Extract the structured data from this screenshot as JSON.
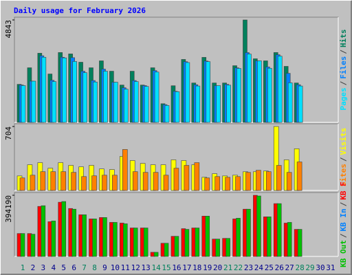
{
  "chart_data": [
    {
      "type": "bar",
      "title": "Daily usage for February 2026",
      "separator": "/",
      "ylim": [
        0,
        4843
      ],
      "yticks": [
        4843
      ],
      "series": [
        {
          "name": "Hits",
          "color": "#00805c",
          "values": [
            1800,
            2583,
            3270,
            2289,
            3303,
            3237,
            2845,
            2583,
            2910,
            2420,
            1766,
            2420,
            1766,
            2583,
            883,
            1733,
            2976,
            1864,
            3074,
            1864,
            1864,
            2681,
            4843,
            3008,
            2910,
            3303,
            2649,
            1864,
            null,
            null,
            null
          ]
        },
        {
          "name": "Files",
          "color": "#0080ff",
          "values": [
            1770,
            1950,
            3150,
            1990,
            3080,
            3060,
            2420,
            1980,
            2520,
            1900,
            1640,
            1980,
            1740,
            2450,
            840,
            1470,
            2870,
            1780,
            2900,
            1740,
            1800,
            2580,
            3300,
            2910,
            2620,
            3200,
            2320,
            1780,
            null,
            null,
            null
          ]
        },
        {
          "name": "Pages",
          "color": "#00e0ff",
          "values": [
            1740,
            1950,
            3080,
            1930,
            3050,
            2880,
            2350,
            1910,
            2420,
            1900,
            1570,
            1930,
            1700,
            2380,
            800,
            1450,
            2830,
            1720,
            2870,
            1740,
            1760,
            2550,
            3230,
            2910,
            2560,
            3130,
            1870,
            1720,
            null,
            null,
            null
          ]
        }
      ]
    },
    {
      "type": "bar",
      "separator": "/",
      "ylim": [
        0,
        704
      ],
      "yticks": [
        704
      ],
      "series": [
        {
          "name": "Visits",
          "color": "#ffff00",
          "values": [
            160,
            283,
            306,
            245,
            306,
            276,
            260,
            276,
            237,
            230,
            375,
            329,
            298,
            283,
            283,
            337,
            329,
            283,
            145,
            184,
            160,
            168,
            206,
            206,
            214,
            704,
            337,
            459,
            null,
            null,
            null
          ]
        },
        {
          "name": "Sites",
          "color": "#ff8000",
          "values": [
            138,
            168,
            207,
            207,
            207,
            199,
            153,
            161,
            168,
            168,
            451,
            207,
            199,
            199,
            168,
            245,
            276,
            306,
            138,
            153,
            145,
            153,
            199,
            222,
            207,
            276,
            199,
            314,
            null,
            null,
            null
          ]
        }
      ]
    },
    {
      "type": "bar",
      "separator": "/",
      "ylim": [
        0,
        394190
      ],
      "yticks": [
        394190
      ],
      "categories": [
        "1",
        "2",
        "3",
        "4",
        "5",
        "6",
        "7",
        "8",
        "9",
        "10",
        "11",
        "12",
        "13",
        "14",
        "15",
        "16",
        "17",
        "18",
        "19",
        "20",
        "21",
        "22",
        "23",
        "24",
        "25",
        "26",
        "27",
        "28",
        "29",
        "30",
        "31"
      ],
      "category_colors": [
        "#00805c",
        "#00008b",
        "#00008b",
        "#00008b",
        "#00008b",
        "#00008b",
        "#00805c",
        "#00805c",
        "#00008b",
        "#00008b",
        "#00008b",
        "#00008b",
        "#00008b",
        "#00805c",
        "#00805c",
        "#00008b",
        "#00008b",
        "#00008b",
        "#00008b",
        "#00008b",
        "#00805c",
        "#00805c",
        "#00008b",
        "#00008b",
        "#00008b",
        "#00008b",
        "#00008b",
        "#00805c",
        "#00805c",
        "#00008b",
        "#00008b"
      ],
      "series": [
        {
          "name": "KB F",
          "color": "#ff0000",
          "values": [
            147840,
            147840,
            322560,
            224000,
            349440,
            309120,
            268800,
            241920,
            250880,
            219520,
            215040,
            183680,
            183680,
            26880,
            85120,
            129920,
            179200,
            183680,
            259840,
            112000,
            116480,
            241920,
            304640,
            394190,
            255360,
            340480,
            215040,
            174720,
            null,
            null,
            null
          ]
        },
        {
          "name": "KB In",
          "color": "#0080ff",
          "values": [
            0,
            0,
            0,
            0,
            0,
            0,
            0,
            0,
            0,
            0,
            0,
            0,
            0,
            0,
            0,
            0,
            0,
            0,
            0,
            0,
            0,
            0,
            0,
            0,
            0,
            0,
            0,
            0,
            null,
            null,
            null
          ]
        },
        {
          "name": "KB Out",
          "color": "#00c000",
          "values": [
            147840,
            143360,
            327040,
            228480,
            353920,
            304640,
            268800,
            241920,
            250880,
            219520,
            210560,
            183680,
            183680,
            26880,
            85120,
            129920,
            174720,
            183680,
            259840,
            112000,
            116480,
            246400,
            304640,
            389760,
            255360,
            340480,
            219520,
            174720,
            null,
            null,
            null
          ]
        }
      ]
    }
  ]
}
